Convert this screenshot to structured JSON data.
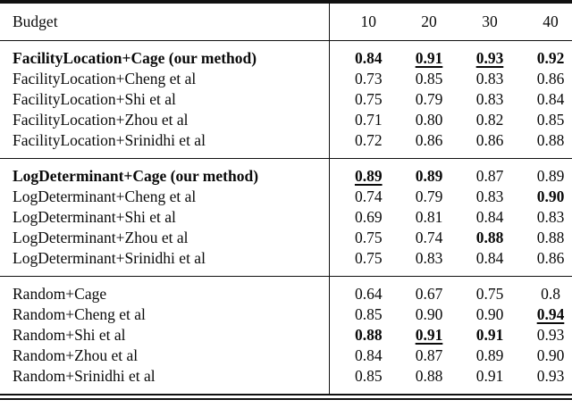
{
  "table": {
    "header": {
      "label": "Budget",
      "columns": [
        "10",
        "20",
        "30",
        "40"
      ]
    },
    "sections": [
      {
        "name": "facility-location",
        "rows": [
          {
            "label": "FacilityLocation+Cage (our method)",
            "bold": true,
            "values": [
              {
                "v": "0.84",
                "bold": true,
                "underline": false
              },
              {
                "v": "0.91",
                "bold": true,
                "underline": true
              },
              {
                "v": "0.93",
                "bold": true,
                "underline": true
              },
              {
                "v": "0.92",
                "bold": true,
                "underline": false
              }
            ]
          },
          {
            "label": "FacilityLocation+Cheng et al",
            "bold": false,
            "values": [
              {
                "v": "0.73"
              },
              {
                "v": "0.85"
              },
              {
                "v": "0.83"
              },
              {
                "v": "0.86"
              }
            ]
          },
          {
            "label": "FacilityLocation+Shi et al",
            "bold": false,
            "values": [
              {
                "v": "0.75"
              },
              {
                "v": "0.79"
              },
              {
                "v": "0.83"
              },
              {
                "v": "0.84"
              }
            ]
          },
          {
            "label": "FacilityLocation+Zhou et al",
            "bold": false,
            "values": [
              {
                "v": "0.71"
              },
              {
                "v": "0.80"
              },
              {
                "v": "0.82"
              },
              {
                "v": "0.85"
              }
            ]
          },
          {
            "label": "FacilityLocation+Srinidhi et al",
            "bold": false,
            "values": [
              {
                "v": "0.72"
              },
              {
                "v": "0.86"
              },
              {
                "v": "0.86"
              },
              {
                "v": "0.88"
              }
            ]
          }
        ]
      },
      {
        "name": "log-determinant",
        "rows": [
          {
            "label": "LogDeterminant+Cage (our method)",
            "bold": true,
            "values": [
              {
                "v": "0.89",
                "bold": true,
                "underline": true
              },
              {
                "v": "0.89",
                "bold": true,
                "underline": false
              },
              {
                "v": "0.87"
              },
              {
                "v": "0.89"
              }
            ]
          },
          {
            "label": "LogDeterminant+Cheng et al",
            "bold": false,
            "values": [
              {
                "v": "0.74"
              },
              {
                "v": "0.79"
              },
              {
                "v": "0.83"
              },
              {
                "v": "0.90",
                "bold": true
              }
            ]
          },
          {
            "label": "LogDeterminant+Shi et al",
            "bold": false,
            "values": [
              {
                "v": "0.69"
              },
              {
                "v": "0.81"
              },
              {
                "v": "0.84"
              },
              {
                "v": "0.83"
              }
            ]
          },
          {
            "label": "LogDeterminant+Zhou et al",
            "bold": false,
            "values": [
              {
                "v": "0.75"
              },
              {
                "v": "0.74"
              },
              {
                "v": "0.88",
                "bold": true
              },
              {
                "v": "0.88"
              }
            ]
          },
          {
            "label": "LogDeterminant+Srinidhi et al",
            "bold": false,
            "values": [
              {
                "v": "0.75"
              },
              {
                "v": "0.83"
              },
              {
                "v": "0.84"
              },
              {
                "v": "0.86"
              }
            ]
          }
        ]
      },
      {
        "name": "random",
        "rows": [
          {
            "label": "Random+Cage",
            "bold": false,
            "values": [
              {
                "v": "0.64"
              },
              {
                "v": "0.67"
              },
              {
                "v": "0.75"
              },
              {
                "v": "0.8"
              }
            ]
          },
          {
            "label": "Random+Cheng et al",
            "bold": false,
            "values": [
              {
                "v": "0.85"
              },
              {
                "v": "0.90"
              },
              {
                "v": "0.90"
              },
              {
                "v": "0.94",
                "bold": true,
                "underline": true
              }
            ]
          },
          {
            "label": "Random+Shi et al",
            "bold": false,
            "values": [
              {
                "v": "0.88",
                "bold": true
              },
              {
                "v": "0.91",
                "bold": true,
                "underline": true
              },
              {
                "v": "0.91",
                "bold": true
              },
              {
                "v": "0.93"
              }
            ]
          },
          {
            "label": "Random+Zhou et al",
            "bold": false,
            "values": [
              {
                "v": "0.84"
              },
              {
                "v": "0.87"
              },
              {
                "v": "0.89"
              },
              {
                "v": "0.90"
              }
            ]
          },
          {
            "label": "Random+Srinidhi et al",
            "bold": false,
            "values": [
              {
                "v": "0.85"
              },
              {
                "v": "0.88"
              },
              {
                "v": "0.91"
              },
              {
                "v": "0.93"
              }
            ]
          }
        ]
      }
    ]
  }
}
